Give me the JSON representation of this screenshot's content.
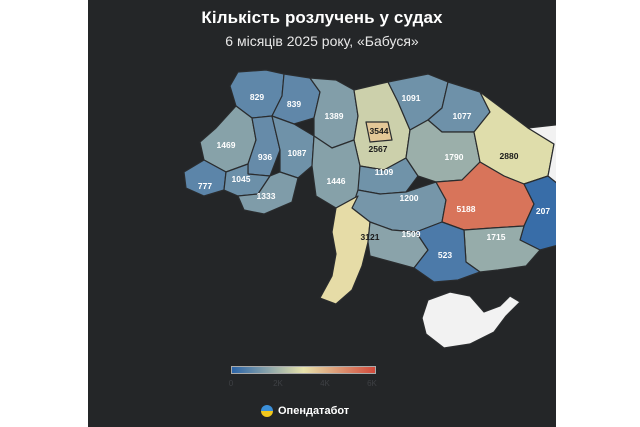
{
  "title": "Кількість розлучень у судах",
  "subtitle": "6 місяців 2025 року, «Бабуся»",
  "legend": {
    "ticks": [
      "0",
      "2K",
      "4K",
      "6K"
    ],
    "min": 0,
    "max": 6000,
    "colors": [
      "#2b64a8",
      "#e7e2ab",
      "#d24b3c"
    ]
  },
  "brand": {
    "name": "Опендатабот",
    "icon": "ukraine-flag-circle-icon"
  },
  "regions": [
    {
      "id": "volyn",
      "value": 829
    },
    {
      "id": "rivne",
      "value": 839
    },
    {
      "id": "zhytomyr",
      "value": 1389
    },
    {
      "id": "kyiv-oblast",
      "value": 2567
    },
    {
      "id": "kyiv-city",
      "value": 3544
    },
    {
      "id": "chernihiv",
      "value": 1091
    },
    {
      "id": "sumy",
      "value": 1077
    },
    {
      "id": "lviv",
      "value": 1469
    },
    {
      "id": "ternopil",
      "value": 936
    },
    {
      "id": "khmelnytskyi",
      "value": 1087
    },
    {
      "id": "vinnytsia",
      "value": 1446
    },
    {
      "id": "cherkasy",
      "value": 1109
    },
    {
      "id": "poltava",
      "value": 1790
    },
    {
      "id": "kharkiv",
      "value": 2880
    },
    {
      "id": "zakarpattia",
      "value": 777
    },
    {
      "id": "ivano-frankivsk",
      "value": 1045
    },
    {
      "id": "chernivtsi",
      "value": 1333
    },
    {
      "id": "kirovohrad",
      "value": 1200
    },
    {
      "id": "dnipro",
      "value": 5188
    },
    {
      "id": "donetsk",
      "value": 207
    },
    {
      "id": "luhansk",
      "value": null
    },
    {
      "id": "odesa",
      "value": 3121
    },
    {
      "id": "mykolaiv",
      "value": 1509
    },
    {
      "id": "zaporizhzhia",
      "value": 1715
    },
    {
      "id": "kherson",
      "value": 523
    },
    {
      "id": "crimea",
      "value": null
    }
  ]
}
